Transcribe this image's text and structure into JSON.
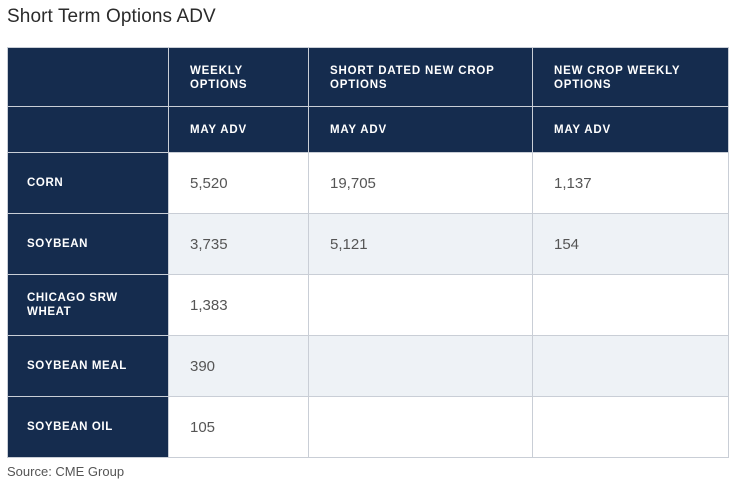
{
  "title": "Short Term Options ADV",
  "table": {
    "columns": [
      "",
      "WEEKLY OPTIONS",
      "SHORT DATED NEW CROP OPTIONS",
      "NEW CROP WEEKLY OPTIONS"
    ],
    "subheaders": [
      "",
      "MAY ADV",
      "MAY ADV",
      "MAY ADV"
    ],
    "rows": [
      {
        "label": "CORN",
        "values": [
          "5,520",
          "19,705",
          "1,137"
        ]
      },
      {
        "label": "SOYBEAN",
        "values": [
          "3,735",
          "5,121",
          "154"
        ]
      },
      {
        "label": "CHICAGO SRW WHEAT",
        "values": [
          "1,383",
          "",
          ""
        ]
      },
      {
        "label": "SOYBEAN MEAL",
        "values": [
          "390",
          "",
          ""
        ]
      },
      {
        "label": "SOYBEAN OIL",
        "values": [
          "105",
          "",
          ""
        ]
      }
    ]
  },
  "source": "Source: CME Group",
  "colors": {
    "header_bg": "#152c4e",
    "header_text": "#ffffff",
    "stripe_bg": "#eef2f6",
    "border": "#c9ced6"
  }
}
